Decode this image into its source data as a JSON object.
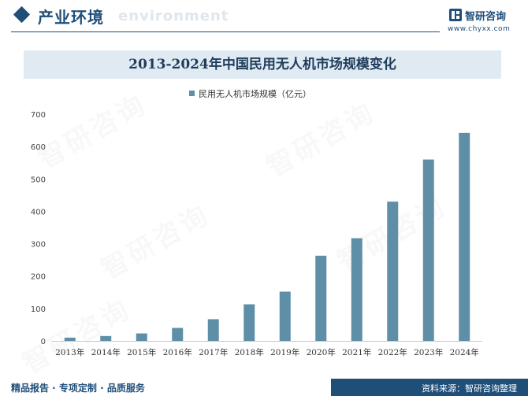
{
  "header": {
    "section_title": "产业环境",
    "section_subtitle": "environment",
    "logo_name": "智研咨询",
    "logo_url": "www.chyxx.com"
  },
  "footer": {
    "left_text": "精品报告 · 专项定制 · 品质服务",
    "source_text": "资料来源：智研咨询整理"
  },
  "colors": {
    "brand": "#1f4e79",
    "bar": "#5e8fa7",
    "title_band": "#dfeaf3"
  },
  "chart_data": {
    "type": "bar",
    "title": "2013-2024年中国民用无人机市场规模变化",
    "xlabel": "",
    "ylabel": "",
    "legend_position": "top-center",
    "grid": false,
    "categories": [
      "2013年",
      "2014年",
      "2015年",
      "2016年",
      "2017年",
      "2018年",
      "2019年",
      "2020年",
      "2021年",
      "2022年",
      "2023年",
      "2024年"
    ],
    "series": [
      {
        "name": "民用无人机市场规模（亿元）",
        "values": [
          10,
          15,
          23,
          40,
          67,
          113,
          152,
          263,
          317,
          430,
          560,
          642
        ]
      }
    ],
    "ylim": [
      0,
      700
    ],
    "yticks": [
      0,
      100,
      200,
      300,
      400,
      500,
      600,
      700
    ]
  }
}
